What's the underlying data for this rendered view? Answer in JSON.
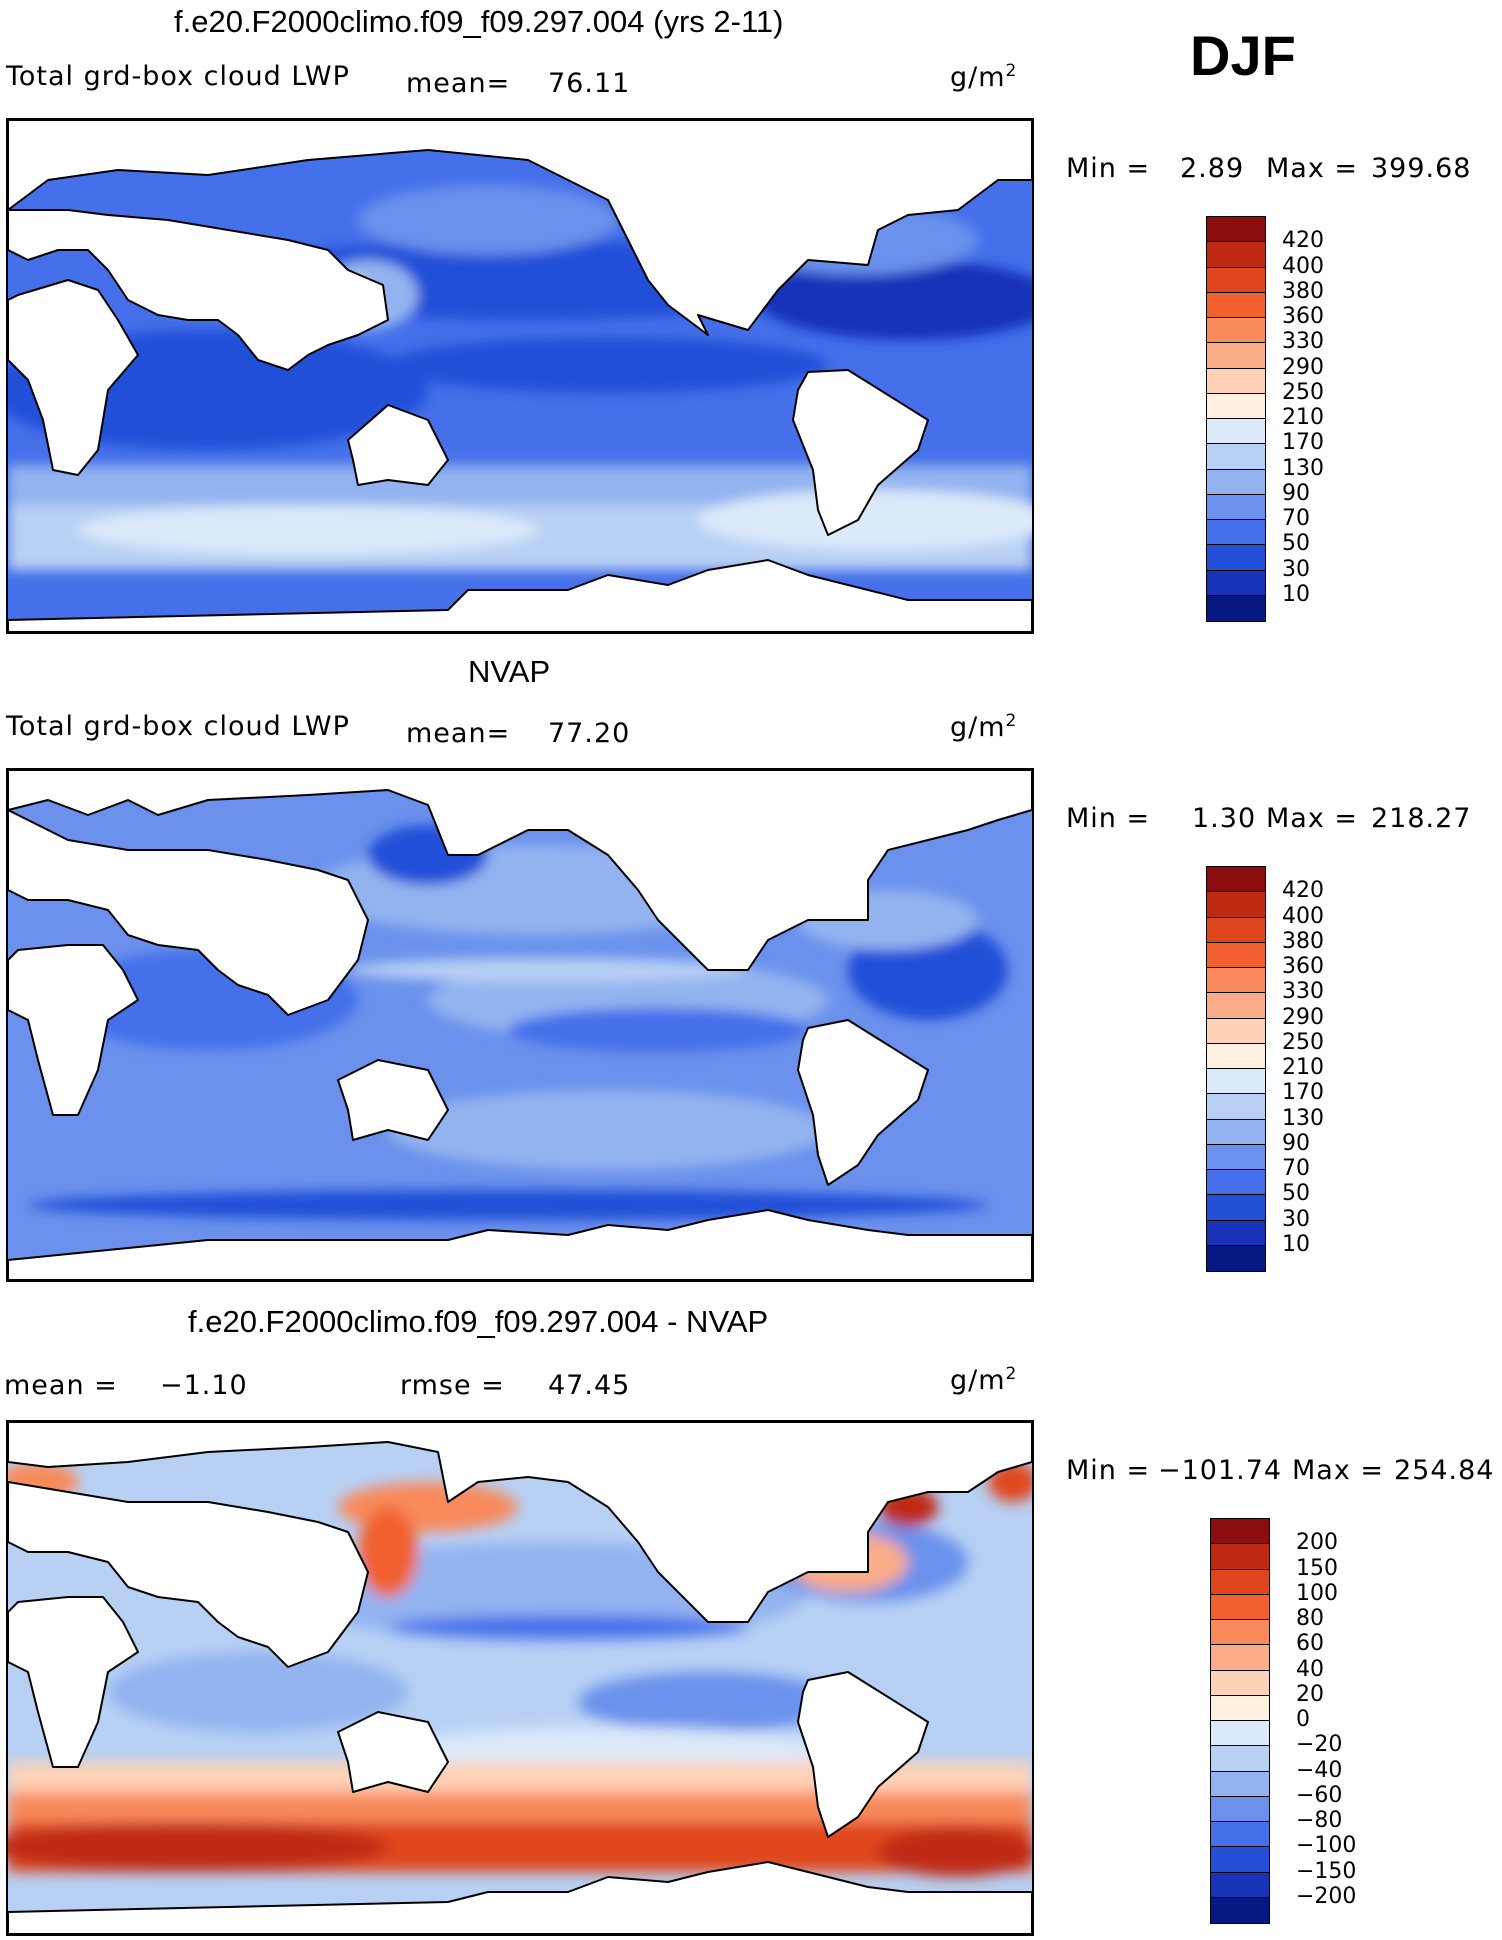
{
  "season": "DJF",
  "unit_base": "g/m",
  "unit_sup": "2",
  "panels": [
    {
      "title": "f.e20.F2000climo.f09_f09.297.004 (yrs 2-11)",
      "variable": "Total grd-box cloud LWP",
      "mean_label": "mean=",
      "mean": "76.11",
      "min_label": "Min =",
      "min": "2.89",
      "max_label": "Max =",
      "max": "399.68"
    },
    {
      "title": "NVAP",
      "variable": "Total grd-box cloud LWP",
      "mean_label": "mean=",
      "mean": "77.20",
      "min_label": "Min =",
      "min": "1.30",
      "max_label": "Max =",
      "max": "218.27"
    },
    {
      "title": "f.e20.F2000climo.f09_f09.297.004 - NVAP",
      "mean_label": "mean =",
      "mean": "−1.10",
      "rmse_label": "rmse =",
      "rmse": "47.45",
      "min_label": "Min =",
      "min": "−101.74",
      "max_label": "Max =",
      "max": "254.84"
    }
  ],
  "colorbars": {
    "lwp": {
      "levels": [
        "420",
        "400",
        "380",
        "360",
        "330",
        "290",
        "250",
        "210",
        "170",
        "130",
        "90",
        "70",
        "50",
        "30",
        "10"
      ],
      "colors": [
        "#8b0d0d",
        "#bf2a12",
        "#e0461e",
        "#f2602f",
        "#f88a5c",
        "#fbac88",
        "#fed2b6",
        "#fdf0e0",
        "#dbe9f9",
        "#b7d0f4",
        "#93b3f0",
        "#6b91ec",
        "#4570ea",
        "#2450d8",
        "#1733b8",
        "#061882"
      ]
    },
    "diff": {
      "levels": [
        "200",
        "150",
        "100",
        "80",
        "60",
        "40",
        "20",
        "0",
        "−20",
        "−40",
        "−60",
        "−80",
        "−100",
        "−150",
        "−200"
      ],
      "colors": [
        "#8b0d0d",
        "#bf2a12",
        "#e0461e",
        "#f2602f",
        "#f88a5c",
        "#fbac88",
        "#fed2b6",
        "#fdf0e0",
        "#dbe9f9",
        "#b7d0f4",
        "#93b3f0",
        "#6b91ec",
        "#4570ea",
        "#2450d8",
        "#1733b8",
        "#061882"
      ]
    }
  }
}
